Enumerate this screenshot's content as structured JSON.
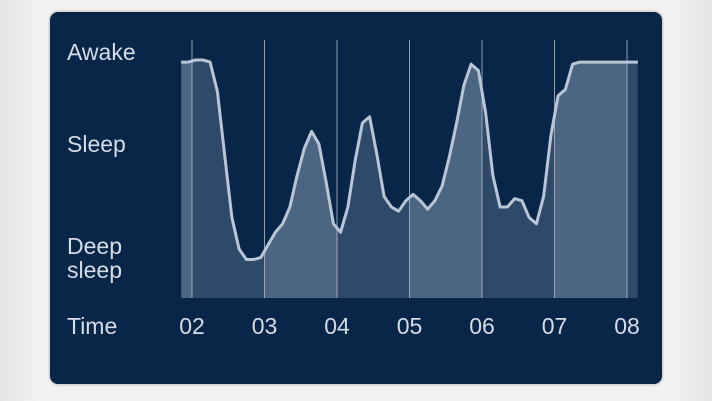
{
  "chart_data": {
    "type": "area",
    "title": "",
    "xlabel": "Time",
    "ylabel": "",
    "y_categories": [
      "Deep sleep",
      "Sleep",
      "Awake"
    ],
    "ylim": [
      0,
      1
    ],
    "x_ticks": [
      "02",
      "03",
      "04",
      "05",
      "06",
      "07",
      "08"
    ],
    "grid": "vertical",
    "colors": {
      "background": "#082647",
      "line": "#b9c6d6",
      "gridline": "#aab6c6",
      "fill_dark": "#2f4a69",
      "fill_light": "#4c6580"
    },
    "series": [
      {
        "x": [
          1.85,
          1.95,
          2.05,
          2.15,
          2.25,
          2.35,
          2.45,
          2.55,
          2.65,
          2.75,
          2.85,
          2.95,
          3.05,
          3.15,
          3.25,
          3.35,
          3.45,
          3.55,
          3.65,
          3.75,
          3.85,
          3.95,
          4.05,
          4.15,
          4.25,
          4.35,
          4.45,
          4.55,
          4.65,
          4.75,
          4.85,
          4.95,
          5.05,
          5.15,
          5.25,
          5.35,
          5.45,
          5.55,
          5.65,
          5.75,
          5.85,
          5.95,
          6.05,
          6.15,
          6.25,
          6.35,
          6.45,
          6.55,
          6.65,
          6.75,
          6.85,
          6.95,
          7.05,
          7.15,
          7.25,
          7.35,
          7.45,
          7.55,
          7.65,
          7.75,
          7.85,
          7.95,
          8.05,
          8.15
        ],
        "y": [
          0.99,
          0.99,
          1.0,
          1.0,
          0.99,
          0.85,
          0.55,
          0.25,
          0.1,
          0.05,
          0.05,
          0.06,
          0.12,
          0.18,
          0.22,
          0.3,
          0.45,
          0.58,
          0.66,
          0.6,
          0.42,
          0.22,
          0.18,
          0.3,
          0.52,
          0.7,
          0.73,
          0.55,
          0.35,
          0.3,
          0.28,
          0.33,
          0.36,
          0.33,
          0.29,
          0.33,
          0.4,
          0.54,
          0.7,
          0.88,
          0.98,
          0.95,
          0.75,
          0.45,
          0.3,
          0.3,
          0.34,
          0.33,
          0.25,
          0.22,
          0.35,
          0.64,
          0.83,
          0.86,
          0.98,
          0.99,
          0.99,
          0.99,
          0.99,
          0.99,
          0.99,
          0.99,
          0.99,
          0.99
        ]
      }
    ]
  }
}
